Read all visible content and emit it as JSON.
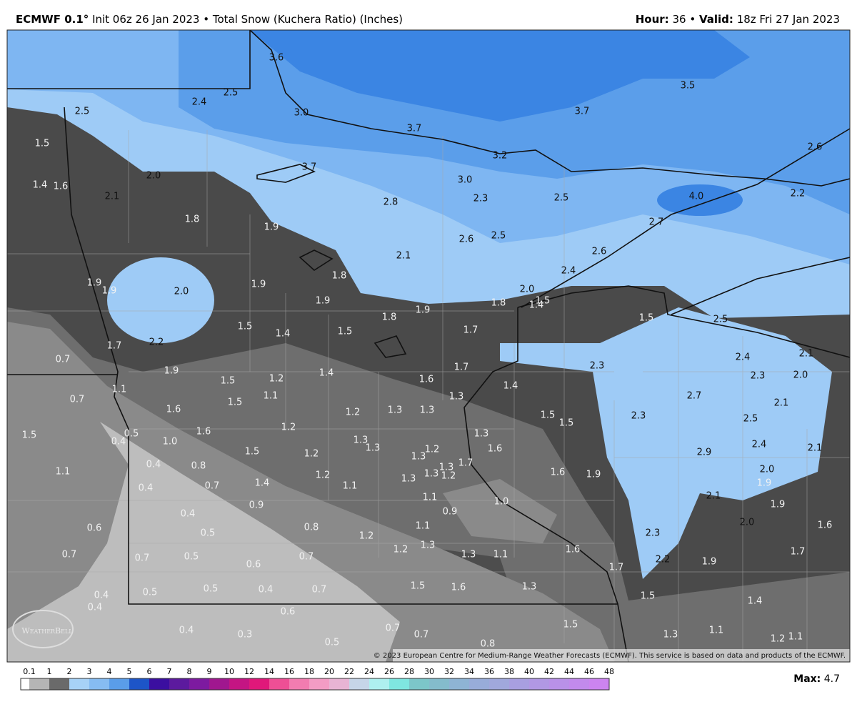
{
  "header": {
    "model": "ECMWF 0.1°",
    "description": "Init 06z 26 Jan 2023 • Total Snow (Kuchera Ratio) (Inches)",
    "hour_label": "Hour:",
    "hour": "36",
    "separator": "•",
    "valid_label": "Valid:",
    "valid": "18z Fri 27 Jan 2023"
  },
  "map_labels": [
    "3.6",
    "2.5",
    "2.4",
    "2.5",
    "3.0",
    "3.7",
    "3.7",
    "3.5",
    "2.6",
    "1.5",
    "2.0",
    "3.7",
    "3.2",
    "3.0",
    "2.3",
    "2.5",
    "4.0",
    "2.2",
    "1.4",
    "1.6",
    "2.1",
    "2.8",
    "1.8",
    "1.9",
    "2.7",
    "2.6",
    "2.5",
    "2.1",
    "2.6",
    "1.8",
    "2.4",
    "1.9",
    "1.9",
    "2.0",
    "1.9",
    "2.0",
    "1.5",
    "1.4",
    "1.9",
    "1.8",
    "1.8",
    "1.9",
    "1.5",
    "2.5",
    "1.5",
    "1.4",
    "1.5",
    "1.7",
    "2.2",
    "1.7",
    "0.7",
    "2.4",
    "2.1",
    "2.3",
    "1.9",
    "1.4",
    "1.7",
    "1.5",
    "1.2",
    "1.6",
    "2.3",
    "2.0",
    "1.4",
    "1.1",
    "1.1",
    "0.7",
    "1.5",
    "1.3",
    "2.7",
    "2.1",
    "1.6",
    "1.2",
    "1.3",
    "1.3",
    "1.5",
    "1.5",
    "2.3",
    "2.5",
    "1.5",
    "0.5",
    "0.4",
    "1.6",
    "1.0",
    "1.2",
    "1.3",
    "1.3",
    "1.3",
    "2.4",
    "2.1",
    "1.5",
    "1.2",
    "1.3",
    "1.2",
    "1.6",
    "2.9",
    "0.4",
    "0.8",
    "1.7",
    "1.3",
    "2.0",
    "1.1",
    "1.2",
    "1.3",
    "1.2",
    "1.3",
    "1.6",
    "1.9",
    "0.4",
    "0.7",
    "1.4",
    "1.1",
    "1.9",
    "1.1",
    "1.0",
    "2.1",
    "1.9",
    "0.4",
    "0.9",
    "0.9",
    "2.0",
    "1.6",
    "0.6",
    "0.5",
    "0.8",
    "1.1",
    "1.2",
    "2.3",
    "0.7",
    "0.7",
    "0.5",
    "0.7",
    "1.2",
    "1.3",
    "1.3",
    "1.1",
    "1.6",
    "2.2",
    "1.9",
    "1.7",
    "0.6",
    "1.7",
    "0.4",
    "0.4",
    "0.5",
    "0.5",
    "0.4",
    "0.7",
    "1.5",
    "1.6",
    "1.3",
    "1.5",
    "1.4",
    "0.6",
    "0.4",
    "0.3",
    "0.7",
    "0.7",
    "1.5",
    "1.3",
    "1.1",
    "1.2",
    "1.1",
    "0.5",
    "0.8"
  ],
  "logo": "WeatherBell",
  "copyright": "© 2023 European Centre for Medium-Range Weather Forecasts (ECMWF). This service is based on data and products of the ECMWF.",
  "colorbar": {
    "ticks": [
      0.1,
      1,
      2,
      3,
      4,
      5,
      6,
      7,
      8,
      9,
      10,
      12,
      14,
      16,
      18,
      20,
      22,
      24,
      26,
      28,
      30,
      32,
      34,
      36,
      38,
      40,
      42,
      44,
      46,
      48
    ],
    "colors": [
      "#ffffff",
      "#b5b5b5",
      "#6a6a6a",
      "#a7d2f7",
      "#86bcf2",
      "#5a9de9",
      "#1d55c8",
      "#3b0fa0",
      "#5c1a9e",
      "#7d1aa0",
      "#a0178f",
      "#c41583",
      "#e0187a",
      "#ee4f95",
      "#f27cb0",
      "#f39cc4",
      "#e8b4d4",
      "#c6d5e8",
      "#aef0ef",
      "#7fe6e0",
      "#7cc6c9",
      "#84bccc",
      "#8eb4d4",
      "#98acd9",
      "#a0a8dc",
      "#a89fe0",
      "#b198e4",
      "#b991e8",
      "#c28aec",
      "#cc84f0"
    ]
  },
  "max_label": "Max:",
  "max_value": 4.7
}
